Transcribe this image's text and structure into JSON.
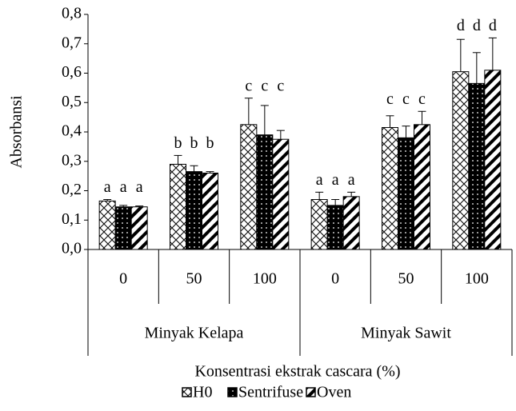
{
  "chart_data": {
    "type": "bar",
    "ylabel": "Absorbansi",
    "xlabel": "Konsentrasi ekstrak cascara (%)",
    "categories": [
      "0",
      "50",
      "100",
      "0",
      "50",
      "100"
    ],
    "groups": [
      "Minyak Kelapa",
      "Minyak Sawit"
    ],
    "ylim": [
      0,
      0.8
    ],
    "yticks": [
      {
        "value": 0,
        "label": "0,0"
      },
      {
        "value": 0.1,
        "label": "0,1"
      },
      {
        "value": 0.2,
        "label": "0,2"
      },
      {
        "value": 0.3,
        "label": "0,3"
      },
      {
        "value": 0.4,
        "label": "0,4"
      },
      {
        "value": 0.5,
        "label": "0,5"
      },
      {
        "value": 0.6,
        "label": "0,6"
      },
      {
        "value": 0.7,
        "label": "0,7"
      },
      {
        "value": 0.8,
        "label": "0,8"
      }
    ],
    "legend": "bottom",
    "series": [
      {
        "name": "H0",
        "color": "#000000",
        "values": [
          0.165,
          0.29,
          0.425,
          0.17,
          0.415,
          0.605
        ],
        "errors": [
          0.005,
          0.03,
          0.09,
          0.025,
          0.04,
          0.11
        ],
        "letters": [
          "a",
          "b",
          "c",
          "a",
          "c",
          "d"
        ]
      },
      {
        "name": "Sentrifuse",
        "color": "#000000",
        "values": [
          0.145,
          0.265,
          0.39,
          0.15,
          0.38,
          0.565
        ],
        "errors": [
          0.005,
          0.02,
          0.1,
          0.02,
          0.04,
          0.105
        ],
        "letters": [
          "a",
          "b",
          "c",
          "a",
          "c",
          "d"
        ]
      },
      {
        "name": "Oven",
        "color": "#000000",
        "values": [
          0.145,
          0.26,
          0.375,
          0.18,
          0.425,
          0.61
        ],
        "errors": [
          0.003,
          0.005,
          0.03,
          0.015,
          0.045,
          0.11
        ],
        "letters": [
          "a",
          "b",
          "c",
          "a",
          "c",
          "d"
        ]
      }
    ]
  }
}
